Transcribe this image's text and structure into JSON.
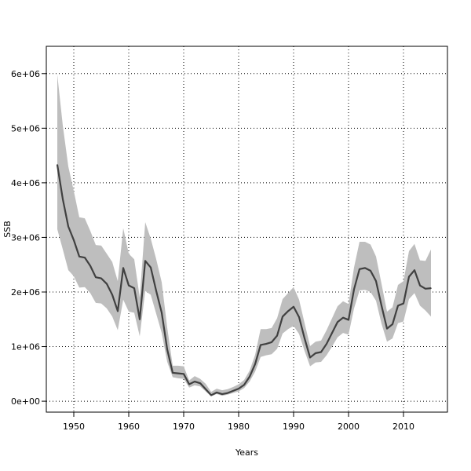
{
  "chart_data": {
    "type": "line",
    "title": "",
    "xlabel": "Years",
    "ylabel": "SSB",
    "xlim": [
      1945,
      2018
    ],
    "ylim": [
      -200000,
      6500000
    ],
    "grid": true,
    "x_ticks": [
      1950,
      1960,
      1970,
      1980,
      1990,
      2000,
      2010
    ],
    "y_ticks": [
      0,
      1000000,
      2000000,
      3000000,
      4000000,
      5000000,
      6000000
    ],
    "y_tick_labels": [
      "0e+00",
      "1e+06",
      "2e+06",
      "3e+06",
      "4e+06",
      "5e+06",
      "6e+06"
    ],
    "x": [
      1947,
      1948,
      1949,
      1950,
      1951,
      1952,
      1953,
      1954,
      1955,
      1956,
      1957,
      1958,
      1959,
      1960,
      1961,
      1962,
      1963,
      1964,
      1965,
      1966,
      1967,
      1968,
      1969,
      1970,
      1971,
      1972,
      1973,
      1974,
      1975,
      1976,
      1977,
      1978,
      1979,
      1980,
      1981,
      1982,
      1983,
      1984,
      1985,
      1986,
      1987,
      1988,
      1989,
      1990,
      1991,
      1992,
      1993,
      1994,
      1995,
      1996,
      1997,
      1998,
      1999,
      2000,
      2001,
      2002,
      2003,
      2004,
      2005,
      2006,
      2007,
      2008,
      2009,
      2010,
      2011,
      2012,
      2013,
      2014,
      2015
    ],
    "series": [
      {
        "values": [
          4330000,
          3700000,
          3200000,
          2950000,
          2650000,
          2630000,
          2480000,
          2270000,
          2250000,
          2150000,
          1950000,
          1650000,
          2440000,
          2120000,
          2070000,
          1500000,
          2570000,
          2450000,
          2020000,
          1620000,
          950000,
          520000,
          510000,
          500000,
          310000,
          360000,
          330000,
          220000,
          110000,
          160000,
          130000,
          150000,
          190000,
          230000,
          300000,
          450000,
          680000,
          1030000,
          1050000,
          1080000,
          1200000,
          1550000,
          1650000,
          1730000,
          1540000,
          1150000,
          800000,
          880000,
          900000,
          1050000,
          1250000,
          1450000,
          1530000,
          1490000,
          2050000,
          2420000,
          2440000,
          2390000,
          2200000,
          1750000,
          1330000,
          1410000,
          1750000,
          1790000,
          2280000,
          2400000,
          2120000,
          2060000,
          2070000
        ]
      }
    ],
    "band_upper": [
      5980000,
      5050000,
      4300000,
      3850000,
      3370000,
      3350000,
      3120000,
      2860000,
      2850000,
      2700000,
      2550000,
      2200000,
      3170000,
      2700000,
      2600000,
      1900000,
      3280000,
      2980000,
      2600000,
      2180000,
      1350000,
      650000,
      650000,
      640000,
      380000,
      460000,
      410000,
      320000,
      170000,
      230000,
      200000,
      220000,
      260000,
      310000,
      390000,
      560000,
      850000,
      1320000,
      1320000,
      1340000,
      1520000,
      1870000,
      1980000,
      2090000,
      1860000,
      1430000,
      1010000,
      1090000,
      1110000,
      1300000,
      1520000,
      1740000,
      1830000,
      1780000,
      2450000,
      2920000,
      2920000,
      2870000,
      2650000,
      2150000,
      1640000,
      1720000,
      2130000,
      2200000,
      2750000,
      2880000,
      2580000,
      2570000,
      2780000
    ],
    "band_lower": [
      3150000,
      2780000,
      2400000,
      2290000,
      2080000,
      2090000,
      1980000,
      1800000,
      1790000,
      1700000,
      1550000,
      1300000,
      1860000,
      1640000,
      1620000,
      1190000,
      2020000,
      1950000,
      1600000,
      1250000,
      720000,
      440000,
      420000,
      410000,
      250000,
      290000,
      270000,
      180000,
      90000,
      130000,
      100000,
      120000,
      150000,
      180000,
      240000,
      360000,
      540000,
      810000,
      840000,
      860000,
      960000,
      1240000,
      1320000,
      1380000,
      1230000,
      920000,
      640000,
      710000,
      720000,
      840000,
      1000000,
      1170000,
      1250000,
      1220000,
      1700000,
      2030000,
      2040000,
      2000000,
      1840000,
      1420000,
      1090000,
      1150000,
      1430000,
      1460000,
      1870000,
      1980000,
      1750000,
      1660000,
      1550000
    ],
    "line_color": "#404040",
    "band_color": "#bebebe"
  }
}
